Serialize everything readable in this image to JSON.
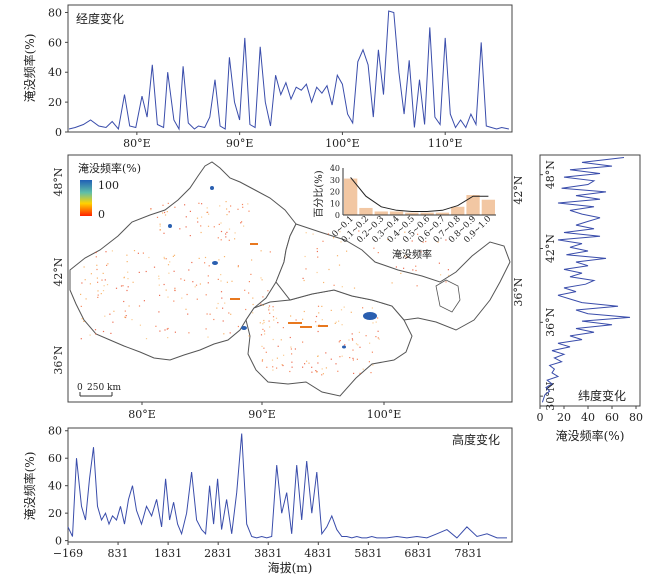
{
  "colors": {
    "line": "#3a4dab",
    "bar": "#f2c7a3",
    "frame": "#444444",
    "coast": "#666666",
    "rest": "#ffffff"
  },
  "legend": {
    "title": "淹没频率(%)",
    "max": "100",
    "min": "0",
    "colors": [
      "#ff2000",
      "#ffd200",
      "#5fbfa8",
      "#1f5fb6"
    ]
  },
  "scalebar": {
    "zero": "0",
    "label": "250 km"
  },
  "chart_data": [
    {
      "id": "longitude",
      "type": "line",
      "title": "经度变化",
      "ylabel": "淹没频率(%)",
      "xlabel": "",
      "ylim": [
        0,
        85
      ],
      "yticks": [
        0,
        20,
        40,
        60,
        80
      ],
      "xlim": [
        73.3,
        116.5
      ],
      "xtick_values": [
        80,
        90,
        100,
        110
      ],
      "xtick_labels": [
        "80°E",
        "90°E",
        "100°E",
        "110°E"
      ],
      "x": [
        73.4,
        74.0,
        74.8,
        75.5,
        76.3,
        77.0,
        77.6,
        78.2,
        78.8,
        79.3,
        79.9,
        80.5,
        81.0,
        81.5,
        82.0,
        82.6,
        83.0,
        83.6,
        84.1,
        84.5,
        85.0,
        85.6,
        86.0,
        86.6,
        87.1,
        87.6,
        88.1,
        88.6,
        89.0,
        89.5,
        90.0,
        90.5,
        91.0,
        91.5,
        92.0,
        92.5,
        93.0,
        93.5,
        94.0,
        94.5,
        95.0,
        95.5,
        96.0,
        96.5,
        97.0,
        97.5,
        98.0,
        98.5,
        99.0,
        99.5,
        100.0,
        100.5,
        101.0,
        101.5,
        102.0,
        102.5,
        103.0,
        103.5,
        104.0,
        104.5,
        105.0,
        105.5,
        106.0,
        106.5,
        107.0,
        107.5,
        108.0,
        108.5,
        109.0,
        109.5,
        110.0,
        110.5,
        111.0,
        111.5,
        112.0,
        112.5,
        113.0,
        113.5,
        114.0,
        114.5,
        115.0,
        115.5,
        116.2
      ],
      "y": [
        2,
        3,
        5,
        8,
        4,
        3,
        7,
        2,
        25,
        4,
        3,
        24,
        10,
        45,
        5,
        3,
        40,
        8,
        2,
        44,
        6,
        2,
        4,
        3,
        10,
        35,
        4,
        2,
        50,
        20,
        8,
        63,
        5,
        3,
        57,
        20,
        4,
        38,
        25,
        33,
        22,
        30,
        28,
        32,
        20,
        30,
        26,
        31,
        18,
        38,
        32,
        12,
        6,
        47,
        55,
        45,
        10,
        55,
        25,
        81,
        80,
        40,
        12,
        48,
        3,
        35,
        5,
        70,
        10,
        5,
        63,
        12,
        3,
        8,
        3,
        12,
        5,
        60,
        4,
        3,
        2,
        3,
        2
      ]
    },
    {
      "id": "latitude",
      "type": "line",
      "title": "纬度变化",
      "xlabel": "淹没频率(%)",
      "ylabel": "",
      "xlim": [
        0,
        80
      ],
      "xticks": [
        0,
        20,
        40,
        60,
        80
      ],
      "ylim": [
        29.2,
        49.6
      ],
      "ytick_values": [
        30,
        36,
        42,
        48
      ],
      "ytick_labels": [
        "30°N",
        "36°N",
        "42°N",
        "48°N"
      ],
      "y": [
        49.4,
        49.0,
        48.7,
        48.4,
        48.1,
        47.8,
        47.5,
        47.2,
        46.9,
        46.6,
        46.3,
        46.0,
        45.7,
        45.4,
        45.1,
        44.8,
        44.5,
        44.2,
        43.9,
        43.6,
        43.3,
        43.0,
        42.7,
        42.4,
        42.1,
        41.8,
        41.5,
        41.2,
        40.9,
        40.6,
        40.3,
        40.0,
        39.7,
        39.4,
        39.1,
        38.8,
        38.5,
        38.2,
        37.9,
        37.6,
        37.3,
        37.0,
        36.7,
        36.4,
        36.1,
        35.8,
        35.5,
        35.2,
        34.9,
        34.6,
        34.3,
        34.0,
        33.7,
        33.4,
        33.1,
        32.8,
        32.5,
        32.2,
        31.9,
        31.6,
        31.3,
        31.0,
        30.7,
        30.4,
        30.1,
        29.8,
        29.5
      ],
      "x": [
        70,
        35,
        60,
        25,
        50,
        20,
        45,
        40,
        18,
        55,
        30,
        50,
        15,
        45,
        25,
        35,
        50,
        40,
        30,
        45,
        20,
        50,
        15,
        35,
        25,
        40,
        22,
        55,
        30,
        40,
        20,
        35,
        25,
        45,
        38,
        20,
        30,
        15,
        25,
        35,
        65,
        30,
        40,
        75,
        35,
        60,
        30,
        45,
        25,
        35,
        15,
        25,
        10,
        20,
        12,
        18,
        8,
        12,
        10,
        15,
        6,
        10,
        5,
        8,
        4,
        3,
        2
      ]
    },
    {
      "id": "elevation",
      "type": "line",
      "title": "高度变化",
      "ylabel": "淹没频率(%)",
      "xlabel": "海拔(m)",
      "ylim": [
        -1,
        82
      ],
      "yticks": [
        0,
        20,
        40,
        60,
        80
      ],
      "xlim": [
        -169,
        8700
      ],
      "xtick_values": [
        -169,
        831,
        1831,
        2831,
        3831,
        4831,
        5831,
        6831,
        7831
      ],
      "xtick_labels": [
        "−169",
        "831",
        "1831",
        "2831",
        "3831",
        "4831",
        "5831",
        "6831",
        "7831"
      ],
      "x": [
        -169,
        -80,
        0,
        100,
        180,
        260,
        340,
        420,
        500,
        580,
        650,
        720,
        800,
        880,
        960,
        1040,
        1120,
        1200,
        1300,
        1400,
        1500,
        1600,
        1700,
        1780,
        1860,
        1940,
        2020,
        2100,
        2200,
        2300,
        2400,
        2500,
        2580,
        2660,
        2740,
        2820,
        2900,
        3000,
        3100,
        3200,
        3300,
        3400,
        3500,
        3600,
        3700,
        3800,
        3900,
        4000,
        4100,
        4200,
        4300,
        4400,
        4500,
        4600,
        4700,
        4800,
        4900,
        5000,
        5100,
        5200,
        5300,
        5400,
        5500,
        5600,
        5700,
        5800,
        5900,
        6000,
        6200,
        6400,
        6600,
        6800,
        7000,
        7200,
        7400,
        7600,
        7800,
        8000,
        8200,
        8400,
        8600
      ],
      "y": [
        10,
        3,
        60,
        25,
        15,
        45,
        68,
        25,
        15,
        20,
        12,
        18,
        15,
        25,
        12,
        30,
        40,
        22,
        12,
        25,
        18,
        30,
        10,
        45,
        15,
        28,
        12,
        5,
        20,
        50,
        15,
        8,
        5,
        40,
        12,
        45,
        8,
        30,
        5,
        35,
        78,
        12,
        3,
        2,
        3,
        2,
        3,
        55,
        20,
        35,
        5,
        55,
        15,
        58,
        20,
        50,
        5,
        10,
        18,
        8,
        3,
        3,
        2,
        3,
        2,
        2,
        3,
        2,
        2,
        3,
        2,
        3,
        2,
        5,
        8,
        2,
        10,
        3,
        5,
        2,
        2
      ]
    },
    {
      "id": "histogram",
      "type": "bar",
      "title": "",
      "ylabel": "百分比(%)",
      "xlabel": "淹没频率",
      "ylim": [
        0,
        40
      ],
      "yticks": [
        0,
        10,
        20,
        30,
        40
      ],
      "categories": [
        "0~0.1",
        "0.1~0.2",
        "0.2~0.3",
        "0.3~0.4",
        "0.4~0.5",
        "0.5~0.6",
        "0.6~0.7",
        "0.7~0.8",
        "0.8~0.9",
        "0.9~1.0"
      ],
      "values": [
        31,
        6,
        3,
        3,
        2,
        2,
        2,
        7,
        17,
        13
      ],
      "curve": [
        32,
        16,
        7,
        4,
        3,
        3,
        4,
        8,
        16,
        16
      ]
    },
    {
      "id": "map",
      "type": "map",
      "xtick_labels": [
        "80°E",
        "90°E",
        "100°E"
      ],
      "ytick_labels": [
        "48°N",
        "42°N",
        "36°N"
      ],
      "right_tick_labels": [
        "42°N",
        "36°N"
      ]
    }
  ]
}
